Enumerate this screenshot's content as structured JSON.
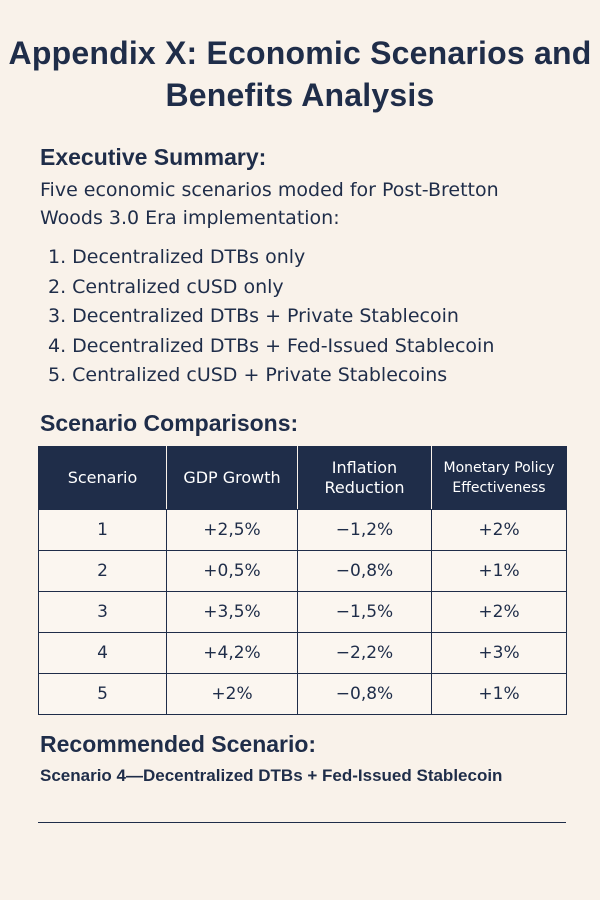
{
  "document": {
    "title": "Appendix X: Economic Scenarios and Benefits Analysis",
    "executive_summary": {
      "heading": "Executive Summary:",
      "text": "Five economic scenarios moded for Post-Bretton Woods 3.0 Era implementation:",
      "scenarios": [
        "1. Decentralized DTBs only",
        "2. Centralized cUSD only",
        "3. Decentralized DTBs + Private Stablecoin",
        "4. Decentralized DTBs + Fed-Issued Stablecoin",
        "5. Centralized cUSD + Private Stablecoins"
      ]
    },
    "comparisons": {
      "heading": "Scenario Comparisons:",
      "columns": [
        "Scenario",
        "GDP Growth",
        "Inflation Reduction",
        "Monetary Policy Effectiveness"
      ],
      "rows": [
        [
          "1",
          "+2,5%",
          "−1,2%",
          "+2%"
        ],
        [
          "2",
          "+0,5%",
          "−0,8%",
          "+1%"
        ],
        [
          "3",
          "+3,5%",
          "−1,5%",
          "+2%"
        ],
        [
          "4",
          "+4,2%",
          "−2,2%",
          "+3%"
        ],
        [
          "5",
          "+2%",
          "−0,8%",
          "+1%"
        ]
      ]
    },
    "recommendation": {
      "heading": "Recommended Scenario:",
      "text": "Scenario 4—Decentralized DTBs + Fed-Issued Stablecoin"
    }
  }
}
